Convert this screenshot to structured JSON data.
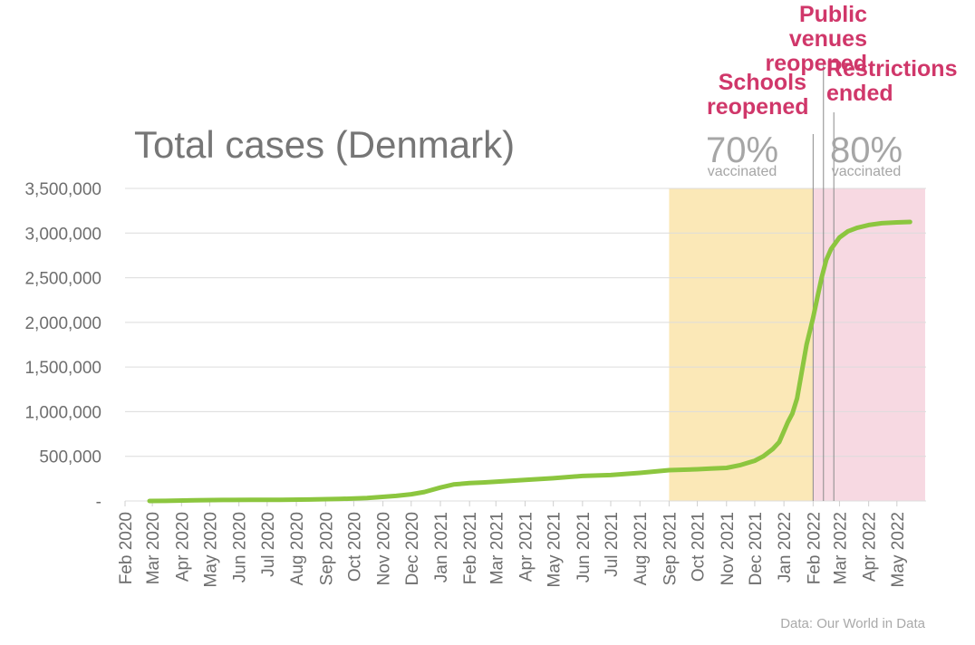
{
  "chart_data": {
    "type": "line",
    "title": "Total cases (Denmark)",
    "source": "Data: Our World in Data",
    "xlabel": "",
    "ylabel": "",
    "ylim": [
      0,
      3500000
    ],
    "grid": true,
    "y_ticks": [
      0,
      500000,
      1000000,
      1500000,
      2000000,
      2500000,
      3000000,
      3500000
    ],
    "y_tick_labels": [
      "-",
      "500,000",
      "1,000,000",
      "1,500,000",
      "2,000,000",
      "2,500,000",
      "3,000,000",
      "3,500,000"
    ],
    "x_tick_labels": [
      "Feb 2020",
      "Mar 2020",
      "Apr 2020",
      "May 2020",
      "Jun 2020",
      "Jul 2020",
      "Aug 2020",
      "Sep 2020",
      "Oct 2020",
      "Nov 2020",
      "Dec 2020",
      "Jan 2021",
      "Feb 2021",
      "Mar 2021",
      "Apr 2021",
      "May 2021",
      "Jun 2021",
      "Jul 2021",
      "Aug 2021",
      "Sep 2021",
      "Oct 2021",
      "Nov 2021",
      "Dec 2021",
      "Jan 2022",
      "Feb 2022",
      "Mar 2022",
      "Apr 2022",
      "May 2022"
    ],
    "line_color": "#8cc63f",
    "series": [
      {
        "x": [
          "2020-02-27",
          "2020-03-15",
          "2020-04-15",
          "2020-05-15",
          "2020-06-15",
          "2020-07-15",
          "2020-08-15",
          "2020-09-15",
          "2020-10-15",
          "2020-11-15",
          "2020-12-01",
          "2020-12-15",
          "2021-01-01",
          "2021-01-15",
          "2021-02-01",
          "2021-02-15",
          "2021-03-01",
          "2021-04-01",
          "2021-05-01",
          "2021-06-01",
          "2021-07-01",
          "2021-08-01",
          "2021-09-01",
          "2021-10-01",
          "2021-10-15",
          "2021-11-01",
          "2021-11-15",
          "2021-12-01",
          "2021-12-10",
          "2021-12-20",
          "2021-12-27",
          "2022-01-01",
          "2022-01-05",
          "2022-01-10",
          "2022-01-15",
          "2022-01-20",
          "2022-01-25",
          "2022-02-01",
          "2022-02-06",
          "2022-02-10",
          "2022-02-15",
          "2022-02-20",
          "2022-03-01",
          "2022-03-10",
          "2022-03-20",
          "2022-04-01",
          "2022-04-15",
          "2022-05-01",
          "2022-05-15"
        ],
        "values": [
          1,
          1000,
          7000,
          11000,
          12000,
          13000,
          16000,
          22000,
          32000,
          57000,
          75000,
          100000,
          150000,
          185000,
          200000,
          207000,
          215000,
          235000,
          255000,
          280000,
          290000,
          315000,
          345000,
          355000,
          362000,
          370000,
          400000,
          450000,
          500000,
          580000,
          660000,
          780000,
          880000,
          980000,
          1150000,
          1450000,
          1750000,
          2050000,
          2300000,
          2500000,
          2700000,
          2820000,
          2950000,
          3020000,
          3060000,
          3090000,
          3110000,
          3120000,
          3125000
        ]
      }
    ],
    "shaded_regions": [
      {
        "start": "2021-09-01",
        "end": "2022-02-01",
        "color": "#fbe8b7"
      },
      {
        "start": "2022-02-01",
        "end": "2022-05-31",
        "color": "#f7d9e2"
      }
    ],
    "event_lines": [
      {
        "date": "2022-02-01",
        "label": "Schools reopened"
      },
      {
        "date": "2022-02-12",
        "label": "Public venues reopened"
      },
      {
        "date": "2022-02-23",
        "label": "Restrictions ended"
      }
    ],
    "vaccination_annotations": [
      {
        "percent": "70%",
        "label": "vaccinated"
      },
      {
        "percent": "80%",
        "label": "vaccinated"
      }
    ],
    "event_color": "#d0376a"
  }
}
